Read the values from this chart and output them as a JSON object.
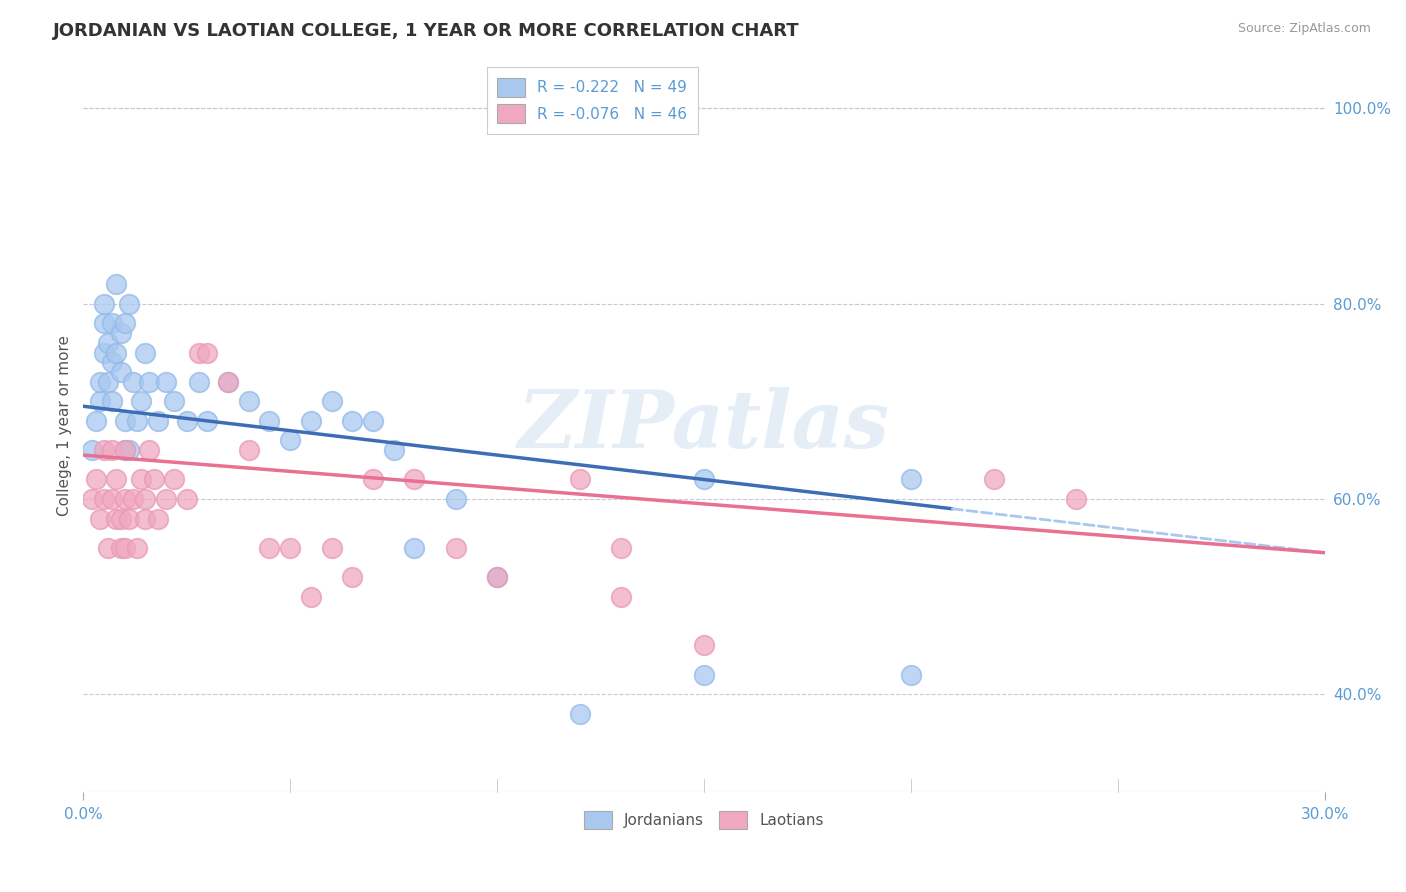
{
  "title": "JORDANIAN VS LAOTIAN COLLEGE, 1 YEAR OR MORE CORRELATION CHART",
  "source": "Source: ZipAtlas.com",
  "ylabel": "College, 1 year or more",
  "xlim": [
    0.0,
    0.3
  ],
  "ylim": [
    0.3,
    1.05
  ],
  "xticks": [
    0.0,
    0.3
  ],
  "xticklabels": [
    "0.0%",
    "30.0%"
  ],
  "yticks_right": [
    0.4,
    0.6,
    0.8,
    1.0
  ],
  "yticklabels_right": [
    "40.0%",
    "60.0%",
    "80.0%",
    "100.0%"
  ],
  "legend1_label": "R = -0.222   N = 49",
  "legend2_label": "R = -0.076   N = 46",
  "bottom_legend1": "Jordanians",
  "bottom_legend2": "Laotians",
  "blue_line_color": "#3d6eb5",
  "pink_line_color": "#e87090",
  "blue_dot_color": "#a8c8f0",
  "pink_dot_color": "#f0a8c0",
  "watermark": "ZIPatlas",
  "background_color": "#ffffff",
  "grid_color": "#c8c8d8",
  "jordanians_x": [
    0.002,
    0.003,
    0.004,
    0.004,
    0.005,
    0.005,
    0.005,
    0.006,
    0.006,
    0.007,
    0.007,
    0.007,
    0.008,
    0.008,
    0.009,
    0.009,
    0.01,
    0.01,
    0.01,
    0.011,
    0.011,
    0.012,
    0.013,
    0.014,
    0.015,
    0.016,
    0.018,
    0.02,
    0.022,
    0.025,
    0.028,
    0.03,
    0.035,
    0.04,
    0.045,
    0.05,
    0.055,
    0.06,
    0.065,
    0.07,
    0.075,
    0.08,
    0.09,
    0.1,
    0.12,
    0.15,
    0.2,
    0.15,
    0.2
  ],
  "jordanians_y": [
    0.65,
    0.68,
    0.7,
    0.72,
    0.75,
    0.78,
    0.8,
    0.76,
    0.72,
    0.78,
    0.74,
    0.7,
    0.82,
    0.75,
    0.77,
    0.73,
    0.78,
    0.68,
    0.65,
    0.8,
    0.65,
    0.72,
    0.68,
    0.7,
    0.75,
    0.72,
    0.68,
    0.72,
    0.7,
    0.68,
    0.72,
    0.68,
    0.72,
    0.7,
    0.68,
    0.66,
    0.68,
    0.7,
    0.68,
    0.68,
    0.65,
    0.55,
    0.6,
    0.52,
    0.38,
    0.42,
    0.42,
    0.62,
    0.62
  ],
  "laotians_x": [
    0.002,
    0.003,
    0.004,
    0.005,
    0.005,
    0.006,
    0.007,
    0.007,
    0.008,
    0.008,
    0.009,
    0.009,
    0.01,
    0.01,
    0.01,
    0.011,
    0.012,
    0.013,
    0.014,
    0.015,
    0.015,
    0.016,
    0.017,
    0.018,
    0.02,
    0.022,
    0.025,
    0.028,
    0.03,
    0.035,
    0.04,
    0.045,
    0.05,
    0.055,
    0.06,
    0.065,
    0.07,
    0.08,
    0.09,
    0.1,
    0.12,
    0.13,
    0.13,
    0.15,
    0.22,
    0.24
  ],
  "laotians_y": [
    0.6,
    0.62,
    0.58,
    0.6,
    0.65,
    0.55,
    0.6,
    0.65,
    0.58,
    0.62,
    0.55,
    0.58,
    0.6,
    0.55,
    0.65,
    0.58,
    0.6,
    0.55,
    0.62,
    0.58,
    0.6,
    0.65,
    0.62,
    0.58,
    0.6,
    0.62,
    0.6,
    0.75,
    0.75,
    0.72,
    0.65,
    0.55,
    0.55,
    0.5,
    0.55,
    0.52,
    0.62,
    0.62,
    0.55,
    0.52,
    0.62,
    0.55,
    0.5,
    0.45,
    0.62,
    0.6
  ],
  "trend_blue_x0": 0.0,
  "trend_blue_y0": 0.695,
  "trend_blue_x1": 0.3,
  "trend_blue_y1": 0.545,
  "trend_blue_solid_end": 0.21,
  "trend_pink_x0": 0.0,
  "trend_pink_y0": 0.645,
  "trend_pink_x1": 0.3,
  "trend_pink_y1": 0.545
}
